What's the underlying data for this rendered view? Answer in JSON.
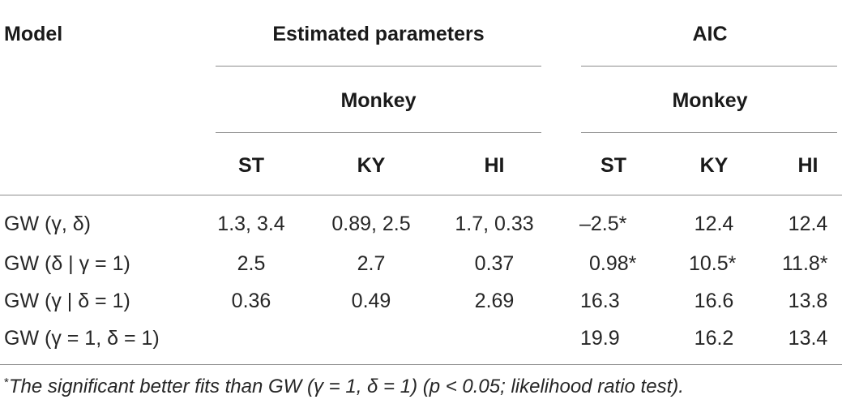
{
  "table": {
    "header": {
      "model": "Model",
      "estimated": "Estimated parameters",
      "aic": "AIC",
      "monkey_est": "Monkey",
      "monkey_aic": "Monkey",
      "cols": [
        "ST",
        "KY",
        "HI",
        "ST",
        "KY",
        "HI"
      ]
    },
    "rows": [
      {
        "model": "GW (γ, δ)",
        "est": [
          "1.3, 3.4",
          "0.89, 2.5",
          "1.7, 0.33"
        ],
        "aic": [
          "–2.5*",
          "12.4",
          "12.4"
        ]
      },
      {
        "model": "GW (δ | γ = 1)",
        "est": [
          "2.5",
          "2.7",
          "0.37"
        ],
        "aic": [
          "0.98*",
          "10.5*",
          "11.8*"
        ]
      },
      {
        "model": "GW (γ | δ = 1)",
        "est": [
          "0.36",
          "0.49",
          "2.69"
        ],
        "aic": [
          "16.3",
          "16.6",
          "13.8"
        ]
      },
      {
        "model": "GW (γ = 1, δ = 1)",
        "est": [
          "",
          "",
          ""
        ],
        "aic": [
          "19.9",
          "16.2",
          "13.4"
        ]
      }
    ]
  },
  "footnote": {
    "marker": "*",
    "text": "The significant better fits than GW (γ = 1, δ = 1) (p < 0.05; likelihood ratio test)."
  }
}
